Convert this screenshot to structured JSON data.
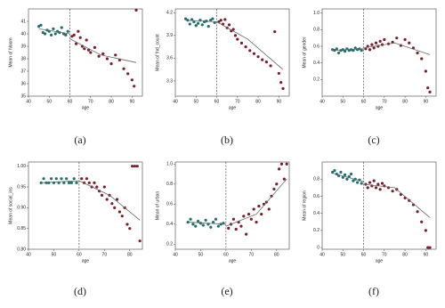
{
  "chart_data": [
    {
      "type": "scatter",
      "label": "(a)",
      "xlabel": "age",
      "ylabel": "Mean of hloom",
      "xlim": [
        40,
        95
      ],
      "xticks": [
        40,
        50,
        60,
        70,
        80,
        90
      ],
      "ylim": [
        35,
        42
      ],
      "yticks": [
        35,
        36,
        37,
        38,
        39,
        40,
        41
      ],
      "cutoff": 60,
      "series": [
        {
          "color": "#1f6f6f",
          "x": [
            45,
            46,
            47,
            48,
            49,
            50,
            51,
            52,
            53,
            54,
            55,
            56,
            57,
            58,
            59
          ],
          "values": [
            40.6,
            40.7,
            40.1,
            40.0,
            40.3,
            40.2,
            39.9,
            40.4,
            40.0,
            40.2,
            40.1,
            40.5,
            40.0,
            39.9,
            40.2
          ]
        },
        {
          "color": "#7a1f2b",
          "x": [
            61,
            62,
            63,
            64,
            65,
            66,
            67,
            68,
            69,
            70,
            72,
            74,
            76,
            78,
            80,
            82,
            84,
            86,
            88,
            90,
            91,
            92
          ],
          "values": [
            39.8,
            39.9,
            39.2,
            40.2,
            39.7,
            39.0,
            38.8,
            39.5,
            38.7,
            38.5,
            38.9,
            38.2,
            38.4,
            38.0,
            37.6,
            38.3,
            37.9,
            37.2,
            36.8,
            36.3,
            35.8,
            41.9
          ]
        },
        {
          "color": "#666666",
          "line": true,
          "x": [
            45,
            60
          ],
          "values": [
            40.4,
            40.0
          ]
        },
        {
          "color": "#666666",
          "line": true,
          "x": [
            60,
            75,
            92
          ],
          "values": [
            39.6,
            38.3,
            37.7
          ]
        }
      ]
    },
    {
      "type": "scatter",
      "label": "(b)",
      "xlabel": "age",
      "ylabel": "Mean of fnd_count",
      "xlim": [
        40,
        95
      ],
      "xticks": [
        40,
        50,
        60,
        70,
        80,
        90
      ],
      "ylim": [
        3.1,
        4.25
      ],
      "yticks": [
        3.3,
        3.6,
        3.9,
        4.2
      ],
      "cutoff": 60,
      "series": [
        {
          "color": "#1f6f6f",
          "x": [
            45,
            46,
            47,
            48,
            49,
            50,
            51,
            52,
            53,
            54,
            55,
            56,
            57,
            58,
            59
          ],
          "values": [
            4.12,
            4.1,
            4.05,
            4.11,
            4.08,
            4.03,
            4.06,
            4.1,
            4.04,
            4.08,
            4.09,
            4.02,
            4.1,
            4.12,
            4.07
          ]
        },
        {
          "color": "#7a1f2b",
          "x": [
            61,
            62,
            63,
            64,
            65,
            66,
            67,
            68,
            69,
            70,
            72,
            74,
            76,
            78,
            80,
            82,
            84,
            86,
            88,
            90,
            91,
            92
          ],
          "values": [
            4.08,
            4.1,
            4.05,
            4.11,
            4.0,
            4.04,
            3.96,
            3.98,
            3.9,
            3.85,
            3.8,
            3.75,
            3.7,
            3.66,
            3.62,
            3.58,
            3.55,
            3.5,
            3.95,
            3.4,
            3.28,
            3.2
          ]
        },
        {
          "color": "#666666",
          "line": true,
          "x": [
            45,
            60
          ],
          "values": [
            4.1,
            4.08
          ]
        },
        {
          "color": "#666666",
          "line": true,
          "x": [
            60,
            75,
            92
          ],
          "values": [
            4.08,
            3.85,
            3.45
          ]
        }
      ]
    },
    {
      "type": "scatter",
      "label": "(c)",
      "xlabel": "age",
      "ylabel": "Mean of gender",
      "xlim": [
        40,
        95
      ],
      "xticks": [
        40,
        50,
        60,
        70,
        80,
        90
      ],
      "ylim": [
        0,
        1.05
      ],
      "yticks": [
        0.2,
        0.4,
        0.6,
        0.8,
        {
          "value": 1,
          "label": "1.0"
        }
      ],
      "cutoff": 60,
      "series": [
        {
          "color": "#1f6f6f",
          "x": [
            45,
            46,
            47,
            48,
            49,
            50,
            51,
            52,
            53,
            54,
            55,
            56,
            57,
            58,
            59
          ],
          "values": [
            0.56,
            0.55,
            0.57,
            0.52,
            0.55,
            0.56,
            0.54,
            0.57,
            0.55,
            0.56,
            0.55,
            0.58,
            0.56,
            0.57,
            0.55
          ]
        },
        {
          "color": "#7a1f2b",
          "x": [
            61,
            62,
            63,
            64,
            65,
            66,
            67,
            68,
            69,
            70,
            72,
            74,
            76,
            78,
            80,
            82,
            84,
            86,
            88,
            90,
            91,
            92
          ],
          "values": [
            0.57,
            0.6,
            0.56,
            0.62,
            0.58,
            0.64,
            0.6,
            0.66,
            0.62,
            0.68,
            0.63,
            0.65,
            0.7,
            0.61,
            0.68,
            0.64,
            0.58,
            0.52,
            0.45,
            0.3,
            0.1,
            0.05
          ]
        },
        {
          "color": "#666666",
          "line": true,
          "x": [
            45,
            60
          ],
          "values": [
            0.55,
            0.57
          ]
        },
        {
          "color": "#666666",
          "line": true,
          "x": [
            60,
            75,
            92
          ],
          "values": [
            0.58,
            0.64,
            0.5
          ]
        }
      ]
    },
    {
      "type": "scatter",
      "label": "(d)",
      "xlabel": "age",
      "ylabel": "Mean of social_ins",
      "xlim": [
        40,
        85
      ],
      "xticks": [
        40,
        50,
        60,
        70,
        80
      ],
      "ylim": [
        0.8,
        1.01
      ],
      "yticks": [
        {
          "value": 0.8,
          "label": "0.80"
        },
        0.85,
        {
          "value": 0.9,
          "label": "0.90"
        },
        0.95,
        {
          "value": 1,
          "label": "1.00"
        }
      ],
      "cutoff": 60,
      "series": [
        {
          "color": "#1f6f6f",
          "x": [
            45,
            46,
            47,
            48,
            49,
            50,
            51,
            52,
            53,
            54,
            55,
            56,
            57,
            58,
            59
          ],
          "values": [
            0.96,
            0.97,
            0.96,
            0.96,
            0.97,
            0.96,
            0.97,
            0.96,
            0.97,
            0.96,
            0.97,
            0.96,
            0.96,
            0.97,
            0.96
          ]
        },
        {
          "color": "#7a1f2b",
          "x": [
            61,
            62,
            63,
            64,
            65,
            66,
            67,
            68,
            69,
            70,
            71,
            72,
            73,
            74,
            75,
            76,
            77,
            78,
            79,
            80,
            81,
            82,
            83,
            84
          ],
          "values": [
            0.97,
            0.96,
            0.97,
            0.96,
            0.95,
            0.96,
            0.95,
            0.94,
            0.93,
            0.95,
            0.92,
            0.93,
            0.91,
            0.9,
            0.92,
            0.89,
            0.88,
            0.9,
            0.86,
            0.85,
            1,
            1,
            1,
            0.82
          ]
        },
        {
          "color": "#666666",
          "line": true,
          "x": [
            45,
            60
          ],
          "values": [
            0.96,
            0.965
          ]
        },
        {
          "color": "#666666",
          "line": true,
          "x": [
            60,
            72,
            84
          ],
          "values": [
            0.965,
            0.93,
            0.87
          ]
        }
      ]
    },
    {
      "type": "scatter",
      "label": "(e)",
      "xlabel": "age",
      "ylabel": "Mean of urban",
      "xlim": [
        40,
        85
      ],
      "xticks": [
        40,
        50,
        60,
        70,
        80
      ],
      "ylim": [
        0.15,
        1.02
      ],
      "yticks": [
        0.2,
        0.4,
        0.6,
        0.8,
        {
          "value": 1,
          "label": "1.0"
        }
      ],
      "cutoff": 60,
      "series": [
        {
          "color": "#1f6f6f",
          "x": [
            45,
            46,
            47,
            48,
            49,
            50,
            51,
            52,
            53,
            54,
            55,
            56,
            57,
            58,
            59
          ],
          "values": [
            0.42,
            0.45,
            0.4,
            0.38,
            0.43,
            0.41,
            0.39,
            0.44,
            0.4,
            0.37,
            0.42,
            0.45,
            0.38,
            0.4,
            0.41
          ]
        },
        {
          "color": "#7a1f2b",
          "x": [
            61,
            62,
            63,
            64,
            65,
            66,
            67,
            68,
            69,
            70,
            71,
            72,
            73,
            74,
            75,
            76,
            77,
            78,
            79,
            80,
            81,
            82,
            83,
            84
          ],
          "values": [
            0.36,
            0.4,
            0.45,
            0.35,
            0.42,
            0.38,
            0.48,
            0.3,
            0.5,
            0.45,
            0.55,
            0.42,
            0.58,
            0.5,
            0.6,
            0.62,
            0.55,
            0.68,
            0.75,
            0.8,
            0.95,
            1,
            0.85,
            1
          ]
        },
        {
          "color": "#666666",
          "line": true,
          "x": [
            45,
            60
          ],
          "values": [
            0.42,
            0.4
          ]
        },
        {
          "color": "#666666",
          "line": true,
          "x": [
            60,
            72,
            84
          ],
          "values": [
            0.38,
            0.5,
            0.85
          ]
        }
      ]
    },
    {
      "type": "scatter",
      "label": "(f)",
      "xlabel": "age",
      "ylabel": "Mean of region",
      "xlim": [
        40,
        95
      ],
      "xticks": [
        40,
        50,
        60,
        70,
        80,
        90
      ],
      "ylim": [
        -0.02,
        1
      ],
      "yticks": [
        0,
        0.2,
        0.4,
        0.6,
        0.8
      ],
      "cutoff": 60,
      "series": [
        {
          "color": "#1f6f6f",
          "x": [
            45,
            46,
            47,
            48,
            49,
            50,
            51,
            52,
            53,
            54,
            55,
            56,
            57,
            58,
            59
          ],
          "values": [
            0.88,
            0.9,
            0.86,
            0.84,
            0.88,
            0.82,
            0.85,
            0.8,
            0.83,
            0.86,
            0.78,
            0.8,
            0.76,
            0.79,
            0.75
          ]
        },
        {
          "color": "#7a1f2b",
          "x": [
            61,
            62,
            63,
            64,
            65,
            66,
            67,
            68,
            69,
            70,
            72,
            74,
            76,
            78,
            80,
            82,
            84,
            86,
            88,
            90,
            91,
            92
          ],
          "values": [
            0.74,
            0.7,
            0.76,
            0.72,
            0.78,
            0.7,
            0.74,
            0.68,
            0.75,
            0.72,
            0.7,
            0.66,
            0.68,
            0.62,
            0.58,
            0.55,
            0.5,
            0.42,
            0.3,
            0.2,
            0,
            0
          ]
        },
        {
          "color": "#666666",
          "line": true,
          "x": [
            45,
            60
          ],
          "values": [
            0.87,
            0.77
          ]
        },
        {
          "color": "#666666",
          "line": true,
          "x": [
            60,
            75,
            92
          ],
          "values": [
            0.74,
            0.7,
            0.35
          ]
        }
      ]
    }
  ]
}
